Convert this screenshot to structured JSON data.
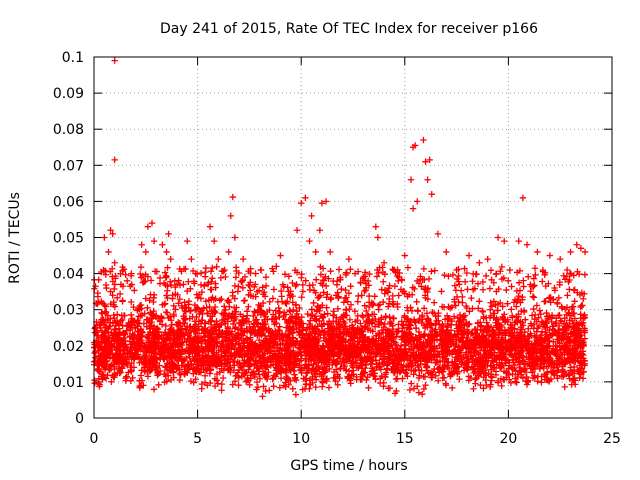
{
  "chart_data": {
    "type": "scatter",
    "title": "Day 241 of 2015, Rate Of TEC Index for receiver p166",
    "xlabel": "GPS time / hours",
    "ylabel": "ROTI / TECUs",
    "xlim": [
      0,
      25
    ],
    "ylim": [
      0,
      0.1
    ],
    "x_ticks": [
      0,
      5,
      10,
      15,
      20,
      25
    ],
    "y_ticks": [
      0,
      0.01,
      0.02,
      0.03,
      0.04,
      0.05,
      0.06,
      0.07,
      0.08,
      0.09,
      0.1
    ],
    "x_tick_labels": [
      "0",
      "5",
      "10",
      "15",
      "20",
      "25"
    ],
    "y_tick_labels": [
      "0",
      "0.01",
      "0.02",
      "0.03",
      "0.04",
      "0.05",
      "0.06",
      "0.07",
      "0.08",
      "0.09",
      "0.1"
    ],
    "grid": true,
    "marker": "+",
    "color": "#ff0000",
    "data_coverage_hours": [
      0,
      23.7
    ],
    "typical_band": [
      0.005,
      0.03
    ],
    "series": [
      {
        "name": "p166",
        "points": [
          [
            1.0,
            0.099
          ],
          [
            1.0,
            0.0715
          ],
          [
            0.5,
            0.05
          ],
          [
            0.7,
            0.046
          ],
          [
            0.8,
            0.052
          ],
          [
            0.9,
            0.051
          ],
          [
            1.0,
            0.043
          ],
          [
            0.6,
            0.036
          ],
          [
            0.8,
            0.035
          ],
          [
            0.9,
            0.034
          ],
          [
            1.3,
            0.037
          ],
          [
            1.6,
            0.038
          ],
          [
            1.8,
            0.04
          ],
          [
            2.3,
            0.048
          ],
          [
            2.5,
            0.046
          ],
          [
            2.6,
            0.053
          ],
          [
            2.8,
            0.054
          ],
          [
            2.9,
            0.049
          ],
          [
            3.3,
            0.048
          ],
          [
            3.5,
            0.046
          ],
          [
            3.6,
            0.051
          ],
          [
            3.7,
            0.044
          ],
          [
            3.9,
            0.038
          ],
          [
            4.5,
            0.049
          ],
          [
            4.7,
            0.044
          ],
          [
            4.9,
            0.04
          ],
          [
            5.6,
            0.053
          ],
          [
            5.8,
            0.049
          ],
          [
            6.0,
            0.044
          ],
          [
            6.3,
            0.041
          ],
          [
            6.5,
            0.046
          ],
          [
            6.6,
            0.056
          ],
          [
            6.7,
            0.0612
          ],
          [
            6.8,
            0.05
          ],
          [
            7.2,
            0.044
          ],
          [
            7.8,
            0.04
          ],
          [
            8.3,
            0.039
          ],
          [
            8.8,
            0.042
          ],
          [
            9.0,
            0.045
          ],
          [
            9.8,
            0.052
          ],
          [
            10.0,
            0.0595
          ],
          [
            10.2,
            0.061
          ],
          [
            10.4,
            0.049
          ],
          [
            10.5,
            0.056
          ],
          [
            10.7,
            0.046
          ],
          [
            10.9,
            0.052
          ],
          [
            11.0,
            0.0595
          ],
          [
            11.2,
            0.06
          ],
          [
            11.4,
            0.046
          ],
          [
            12.3,
            0.044
          ],
          [
            12.6,
            0.04
          ],
          [
            13.0,
            0.039
          ],
          [
            13.6,
            0.053
          ],
          [
            13.7,
            0.05
          ],
          [
            14.0,
            0.043
          ],
          [
            14.5,
            0.041
          ],
          [
            15.0,
            0.045
          ],
          [
            15.3,
            0.066
          ],
          [
            15.4,
            0.075
          ],
          [
            15.5,
            0.0755
          ],
          [
            15.6,
            0.06
          ],
          [
            15.4,
            0.058
          ],
          [
            15.9,
            0.077
          ],
          [
            16.0,
            0.071
          ],
          [
            16.1,
            0.066
          ],
          [
            16.2,
            0.0715
          ],
          [
            16.3,
            0.062
          ],
          [
            16.6,
            0.051
          ],
          [
            17.0,
            0.046
          ],
          [
            17.5,
            0.041
          ],
          [
            18.1,
            0.045
          ],
          [
            18.6,
            0.043
          ],
          [
            19.0,
            0.044
          ],
          [
            19.5,
            0.05
          ],
          [
            19.8,
            0.049
          ],
          [
            20.7,
            0.061
          ],
          [
            20.5,
            0.049
          ],
          [
            20.9,
            0.048
          ],
          [
            21.4,
            0.046
          ],
          [
            22.0,
            0.045
          ],
          [
            22.5,
            0.044
          ],
          [
            23.0,
            0.046
          ],
          [
            23.3,
            0.048
          ],
          [
            23.5,
            0.047
          ],
          [
            23.7,
            0.046
          ]
        ]
      }
    ]
  }
}
